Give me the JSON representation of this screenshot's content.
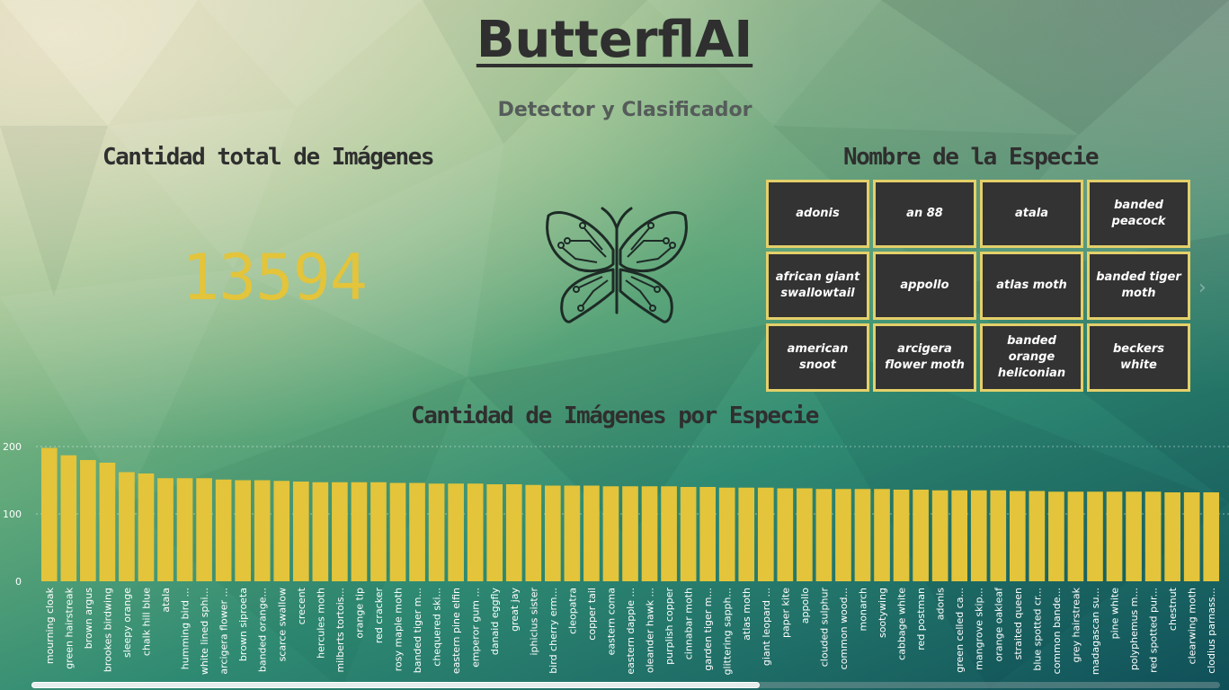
{
  "header": {
    "title": "ButterflAI",
    "subtitle": "Detector y Clasificador"
  },
  "kpi_card": {
    "heading": "Cantidad total de Imágenes",
    "value": "13594",
    "color": "#e3c43a"
  },
  "logo": {
    "icon": "butterfly-circuit-icon"
  },
  "species_slicer": {
    "heading": "Nombre de la Especie",
    "items": [
      [
        "adonis"
      ],
      [
        "an 88"
      ],
      [
        "atala"
      ],
      [
        "banded",
        "peacock"
      ],
      [
        "african giant",
        "swallowtail"
      ],
      [
        "appollo"
      ],
      [
        "atlas moth"
      ],
      [
        "banded tiger",
        "moth"
      ],
      [
        "american",
        "snoot"
      ],
      [
        "arcigera",
        "flower moth"
      ],
      [
        "banded",
        "orange",
        "heliconian"
      ],
      [
        "beckers",
        "white"
      ]
    ],
    "next_icon": "chevron-right-icon"
  },
  "chart_section": {
    "heading": "Cantidad de Imágenes por Especie"
  },
  "chart_data": {
    "type": "bar",
    "title": "Cantidad de Imágenes por Especie",
    "xlabel": "",
    "ylabel": "",
    "ylim": [
      0,
      210
    ],
    "yticks": [
      "0",
      "100",
      "200"
    ],
    "grid": true,
    "bar_color": "#e3c43a",
    "categories": [
      "mourning cloak",
      "green hairstreak",
      "brown argus",
      "brookes birdwing",
      "sleepy orange",
      "chalk hill blue",
      "atala",
      "humming bird ...",
      "white lined sphi...",
      "arcigera flower ...",
      "brown siproeta",
      "banded orange...",
      "scarce swallow",
      "crecent",
      "hercules moth",
      "milberts tortois...",
      "orange tip",
      "red cracker",
      "rosy maple moth",
      "banded tiger m...",
      "chequered ski...",
      "eastern pine elfin",
      "emperor gum ...",
      "danaid eggfly",
      "great jay",
      "iphiclus sister",
      "bird cherry erm...",
      "cleopatra",
      "copper tail",
      "eastern coma",
      "eastern dapple ...",
      "oleander hawk ...",
      "purplish copper",
      "cinnabar moth",
      "garden tiger m...",
      "glittering sapph...",
      "atlas moth",
      "giant leopard ...",
      "paper kite",
      "appollo",
      "clouded sulphur",
      "common wood...",
      "monarch",
      "sootywing",
      "cabbage white",
      "red postman",
      "adonis",
      "green celled ca...",
      "mangrove skip...",
      "orange oakleaf",
      "straited queen",
      "blue spotted cr...",
      "common bande...",
      "grey hairstreak",
      "madagascan su...",
      "pine white",
      "polyphemus m...",
      "red spotted pur...",
      "chestnut",
      "clearwing moth",
      "clodius parnass..."
    ],
    "values": [
      198,
      187,
      180,
      176,
      162,
      160,
      153,
      153,
      153,
      151,
      150,
      150,
      149,
      148,
      147,
      147,
      147,
      147,
      146,
      146,
      145,
      145,
      145,
      144,
      144,
      143,
      142,
      142,
      142,
      141,
      141,
      141,
      141,
      140,
      140,
      139,
      139,
      139,
      138,
      138,
      137,
      137,
      137,
      137,
      136,
      136,
      135,
      135,
      135,
      135,
      134,
      134,
      133,
      133,
      133,
      133,
      133,
      133,
      132,
      132,
      132
    ]
  }
}
